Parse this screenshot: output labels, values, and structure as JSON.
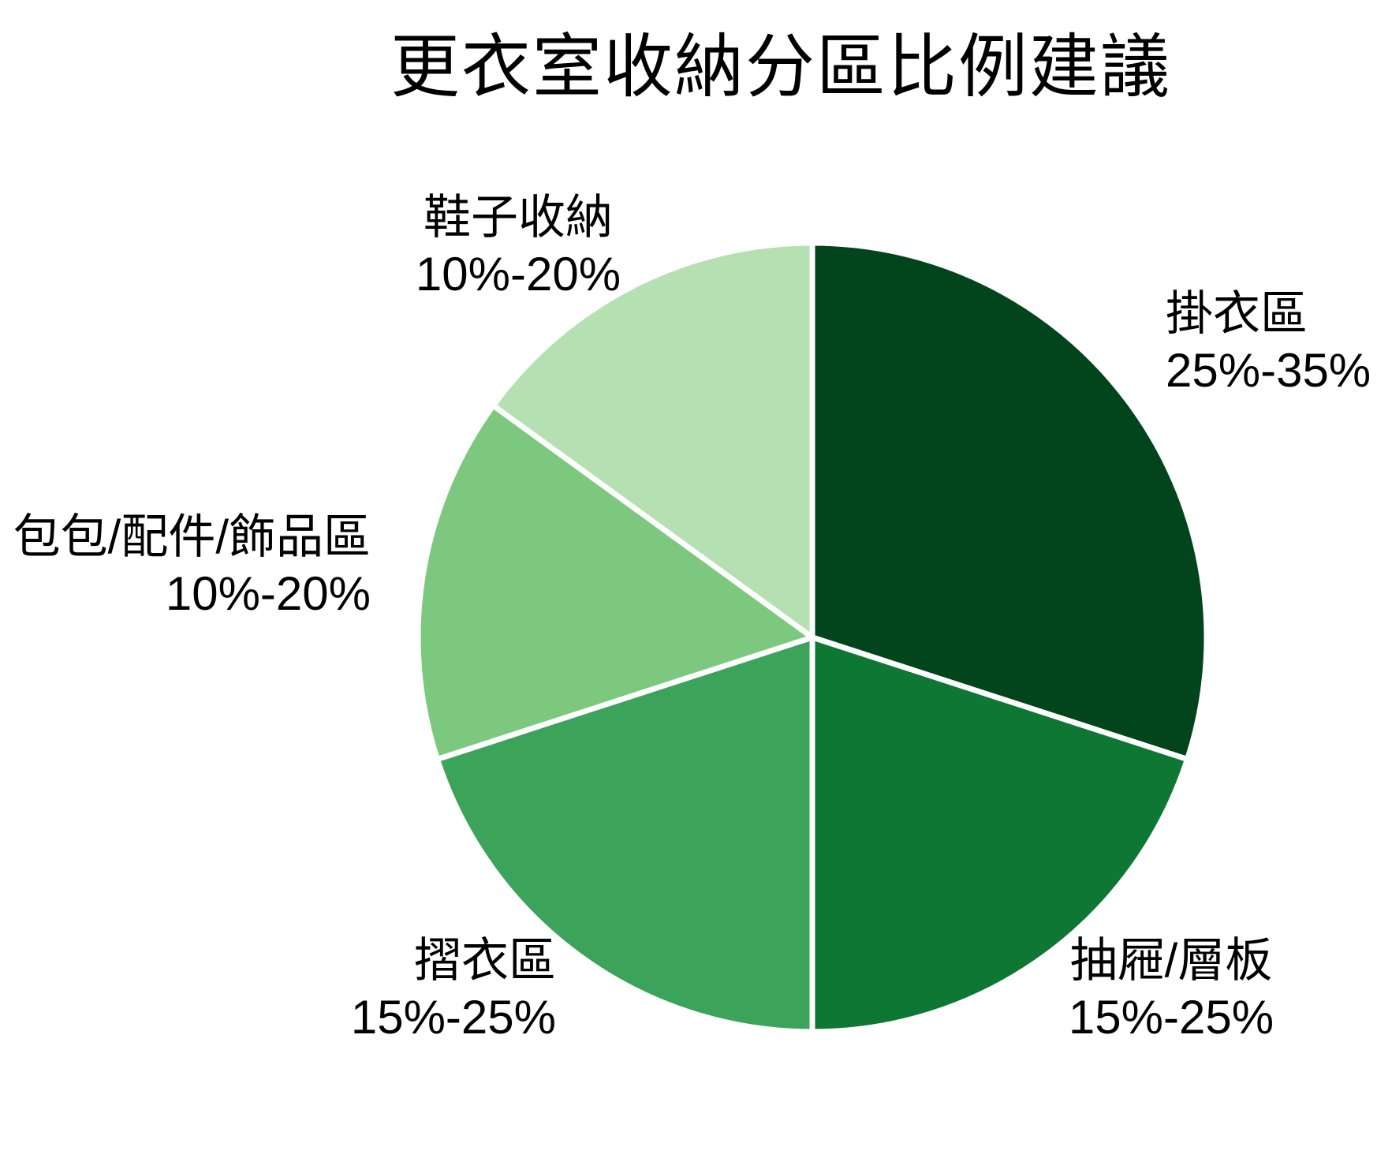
{
  "page": {
    "background": "#FFFFFF"
  },
  "chart_data": {
    "type": "pie",
    "title": "更衣室收納分區比例建議",
    "direction": "clockwise",
    "start_angle": "12-oclock",
    "legend_position": "none",
    "labels_position": "outside",
    "separator_color": "#FFFFFF",
    "text_color": "#000000",
    "slices": [
      {
        "label": "掛衣區",
        "range_label": "25%-35%",
        "value_pct": 30,
        "color": "#02441C"
      },
      {
        "label": "抽屜/層板",
        "range_label": "15%-25%",
        "value_pct": 20,
        "color": "#0E7734"
      },
      {
        "label": "摺衣區",
        "range_label": "15%-25%",
        "value_pct": 20,
        "color": "#3CA45A"
      },
      {
        "label": "包包/配件/飾品區",
        "range_label": "10%-20%",
        "value_pct": 15,
        "color": "#7CC87E"
      },
      {
        "label": "鞋子收納",
        "range_label": "10%-20%",
        "value_pct": 15,
        "color": "#B5E1B2"
      }
    ]
  }
}
